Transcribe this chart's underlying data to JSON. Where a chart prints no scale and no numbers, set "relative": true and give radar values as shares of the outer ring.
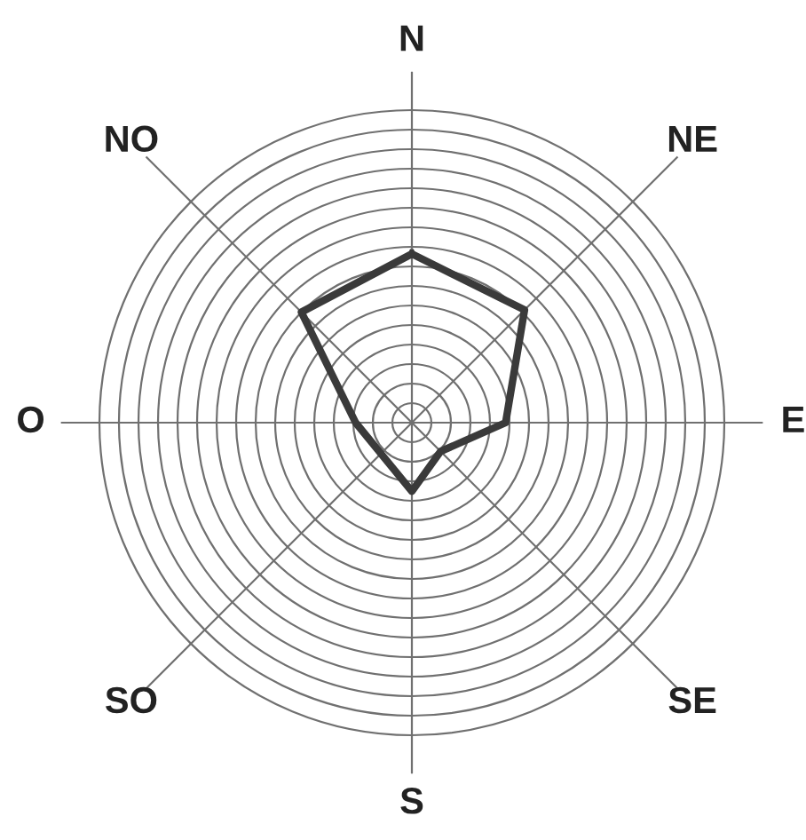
{
  "chart_data": {
    "type": "radar",
    "relative": true,
    "categories": [
      "N",
      "NE",
      "E",
      "SE",
      "S",
      "SO",
      "O",
      "NO"
    ],
    "series": [
      {
        "color": "#3a3a3a",
        "values": [
          0.54,
          0.51,
          0.3,
          0.13,
          0.22,
          0.14,
          0.18,
          0.5
        ]
      }
    ],
    "grid": true,
    "marker": "none",
    "line_style": "solid"
  }
}
